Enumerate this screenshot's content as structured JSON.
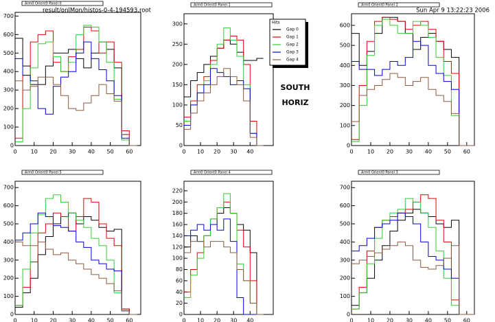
{
  "header": {
    "file": "result/onlMon/histos-0-4-194593.root",
    "date": "Sun Apr  9 13:22:23 2006",
    "label1": "SOUTH",
    "label2": "HORIZ"
  },
  "chart_data": [
    {
      "type": "histogram",
      "title": "Arm0 Orient0 Panel 0",
      "xlim": [
        0,
        66
      ],
      "ylim": [
        0,
        720
      ],
      "xticks": [
        0,
        10,
        20,
        30,
        40,
        50,
        60
      ],
      "yticks": [
        0,
        100,
        200,
        300,
        400,
        500,
        600,
        700
      ],
      "bins": [
        0,
        4,
        8,
        12,
        16,
        20,
        24,
        28,
        32,
        36,
        40,
        44,
        48,
        52,
        56,
        60,
        64
      ],
      "series": [
        {
          "color": "#000000",
          "values": [
            580,
            430,
            330,
            330,
            430,
            500,
            500,
            520,
            470,
            420,
            500,
            560,
            520,
            420,
            60,
            0
          ]
        },
        {
          "color": "#e00000",
          "values": [
            40,
            380,
            560,
            600,
            620,
            450,
            400,
            480,
            520,
            640,
            620,
            500,
            560,
            450,
            80,
            0
          ]
        },
        {
          "color": "#33cc33",
          "values": [
            20,
            200,
            420,
            550,
            560,
            480,
            400,
            450,
            600,
            650,
            640,
            560,
            450,
            250,
            30,
            0
          ]
        },
        {
          "color": "#0000dd",
          "values": [
            470,
            380,
            350,
            200,
            170,
            320,
            370,
            400,
            500,
            560,
            470,
            410,
            350,
            270,
            40,
            0
          ]
        },
        {
          "color": "#8b5a3c",
          "values": [
            350,
            300,
            320,
            370,
            370,
            330,
            270,
            200,
            190,
            230,
            270,
            330,
            280,
            240,
            60,
            0
          ]
        }
      ]
    },
    {
      "type": "histogram",
      "title": "Arm0 Orient0 Panel 1",
      "xlim": [
        0,
        54
      ],
      "ylim": [
        0,
        325
      ],
      "xticks": [
        0,
        10,
        20,
        30,
        40
      ],
      "yticks": [
        0,
        50,
        100,
        150,
        200,
        250,
        300
      ],
      "bins": [
        0,
        4,
        8,
        12,
        16,
        20,
        24,
        28,
        32,
        36,
        40,
        44,
        48
      ],
      "legend_title": "Hits",
      "series": [
        {
          "name": "Gap 0",
          "color": "#000000",
          "values": [
            120,
            160,
            180,
            200,
            220,
            240,
            260,
            250,
            230,
            210,
            210,
            215
          ]
        },
        {
          "name": "Gap 1",
          "color": "#e00000",
          "values": [
            70,
            110,
            150,
            170,
            210,
            240,
            260,
            270,
            260,
            200,
            60,
            0
          ]
        },
        {
          "name": "Gap 2",
          "color": "#33cc33",
          "values": [
            60,
            100,
            130,
            160,
            200,
            250,
            290,
            260,
            220,
            150,
            30,
            0
          ]
        },
        {
          "name": "Gap 3",
          "color": "#0000dd",
          "values": [
            50,
            100,
            130,
            150,
            190,
            180,
            170,
            150,
            160,
            140,
            30,
            0
          ]
        },
        {
          "name": "Gap 4",
          "color": "#8b5a3c",
          "values": [
            40,
            80,
            110,
            130,
            150,
            170,
            190,
            170,
            150,
            110,
            20,
            0
          ]
        }
      ]
    },
    {
      "type": "histogram",
      "title": "Arm0 Orient0 Panel 2",
      "xlim": [
        0,
        64
      ],
      "ylim": [
        0,
        658
      ],
      "xticks": [
        0,
        10,
        20,
        30,
        40,
        50,
        60
      ],
      "yticks": [
        0,
        100,
        200,
        300,
        400,
        500,
        600
      ],
      "bins": [
        0,
        4,
        8,
        12,
        16,
        20,
        24,
        28,
        32,
        36,
        40,
        44,
        48,
        52,
        56,
        60,
        64
      ],
      "series": [
        {
          "color": "#000000",
          "values": [
            560,
            400,
            470,
            560,
            640,
            640,
            620,
            560,
            480,
            540,
            560,
            520,
            480,
            440,
            0,
            0
          ]
        },
        {
          "color": "#e00000",
          "values": [
            30,
            300,
            520,
            620,
            640,
            630,
            620,
            580,
            600,
            620,
            580,
            520,
            420,
            360,
            0,
            0
          ]
        },
        {
          "color": "#33cc33",
          "values": [
            20,
            200,
            450,
            600,
            630,
            600,
            560,
            560,
            620,
            600,
            540,
            440,
            350,
            150,
            0,
            0
          ]
        },
        {
          "color": "#0000dd",
          "values": [
            420,
            380,
            380,
            350,
            380,
            420,
            400,
            440,
            520,
            500,
            400,
            360,
            320,
            280,
            0,
            0
          ]
        },
        {
          "color": "#8b5a3c",
          "values": [
            120,
            250,
            280,
            300,
            330,
            360,
            340,
            300,
            320,
            340,
            280,
            250,
            220,
            160,
            0,
            0
          ]
        }
      ]
    },
    {
      "type": "histogram",
      "title": "Arm0 Orient0 Panel 5",
      "xlim": [
        0,
        66
      ],
      "ylim": [
        0,
        735
      ],
      "xticks": [
        0,
        10,
        20,
        30,
        40,
        50,
        60
      ],
      "yticks": [
        0,
        100,
        200,
        300,
        400,
        500,
        600,
        700
      ],
      "bins": [
        0,
        4,
        8,
        12,
        16,
        20,
        24,
        28,
        32,
        36,
        40,
        44,
        48,
        52,
        56,
        60,
        64
      ],
      "series": [
        {
          "color": "#000000",
          "values": [
            40,
            120,
            200,
            330,
            430,
            500,
            540,
            560,
            500,
            540,
            520,
            480,
            460,
            470,
            30,
            0
          ]
        },
        {
          "color": "#e00000",
          "values": [
            50,
            150,
            290,
            450,
            500,
            560,
            540,
            460,
            540,
            640,
            620,
            500,
            420,
            380,
            30,
            0
          ]
        },
        {
          "color": "#33cc33",
          "values": [
            50,
            250,
            450,
            550,
            640,
            660,
            620,
            560,
            520,
            480,
            420,
            380,
            300,
            120,
            20,
            0
          ]
        },
        {
          "color": "#0000dd",
          "values": [
            410,
            450,
            500,
            560,
            540,
            490,
            480,
            460,
            400,
            370,
            300,
            280,
            250,
            240,
            20,
            0
          ]
        },
        {
          "color": "#8b5a3c",
          "values": [
            400,
            380,
            380,
            400,
            360,
            330,
            340,
            300,
            280,
            250,
            220,
            200,
            170,
            130,
            20,
            0
          ]
        }
      ]
    },
    {
      "type": "histogram",
      "title": "Arm0 Orient0 Panel 4",
      "xlim": [
        0,
        54
      ],
      "ylim": [
        0,
        237
      ],
      "xticks": [
        0,
        10,
        20,
        30,
        40
      ],
      "yticks": [
        0,
        20,
        40,
        60,
        80,
        100,
        120,
        140,
        160,
        180,
        200,
        220
      ],
      "bins": [
        0,
        4,
        8,
        12,
        16,
        20,
        24,
        28,
        32,
        36,
        40,
        44,
        48
      ],
      "series": [
        {
          "color": "#000000",
          "values": [
            120,
            140,
            130,
            140,
            160,
            180,
            190,
            180,
            160,
            150,
            110,
            0
          ]
        },
        {
          "color": "#e00000",
          "values": [
            40,
            80,
            110,
            140,
            170,
            190,
            200,
            180,
            150,
            120,
            60,
            0
          ]
        },
        {
          "color": "#33cc33",
          "values": [
            30,
            70,
            100,
            140,
            170,
            190,
            215,
            180,
            90,
            60,
            20,
            0
          ]
        },
        {
          "color": "#0000dd",
          "values": [
            140,
            150,
            160,
            150,
            160,
            150,
            170,
            130,
            30,
            0,
            0,
            0
          ]
        },
        {
          "color": "#8b5a3c",
          "values": [
            110,
            130,
            130,
            120,
            130,
            130,
            120,
            110,
            80,
            60,
            20,
            0
          ]
        }
      ]
    },
    {
      "type": "histogram",
      "title": "Arm0 Orient0 Panel 3",
      "xlim": [
        0,
        64
      ],
      "ylim": [
        0,
        735
      ],
      "xticks": [
        0,
        10,
        20,
        30,
        40,
        50,
        60
      ],
      "yticks": [
        0,
        100,
        200,
        300,
        400,
        500,
        600,
        700
      ],
      "bins": [
        0,
        4,
        8,
        12,
        16,
        20,
        24,
        28,
        32,
        36,
        40,
        44,
        48,
        52,
        56,
        60,
        64
      ],
      "series": [
        {
          "color": "#000000",
          "values": [
            50,
            120,
            200,
            300,
            380,
            460,
            520,
            560,
            580,
            560,
            540,
            500,
            480,
            520,
            0,
            0
          ]
        },
        {
          "color": "#e00000",
          "values": [
            30,
            150,
            350,
            480,
            520,
            540,
            560,
            580,
            620,
            660,
            640,
            520,
            400,
            80,
            0,
            0
          ]
        },
        {
          "color": "#33cc33",
          "values": [
            30,
            120,
            280,
            420,
            520,
            560,
            580,
            640,
            620,
            560,
            480,
            350,
            200,
            50,
            0,
            0
          ]
        },
        {
          "color": "#0000dd",
          "values": [
            350,
            380,
            420,
            480,
            500,
            520,
            560,
            540,
            500,
            400,
            320,
            300,
            250,
            200,
            0,
            0
          ]
        },
        {
          "color": "#8b5a3c",
          "values": [
            280,
            300,
            320,
            340,
            360,
            380,
            400,
            380,
            300,
            260,
            250,
            270,
            310,
            380,
            0,
            0
          ]
        }
      ]
    }
  ]
}
